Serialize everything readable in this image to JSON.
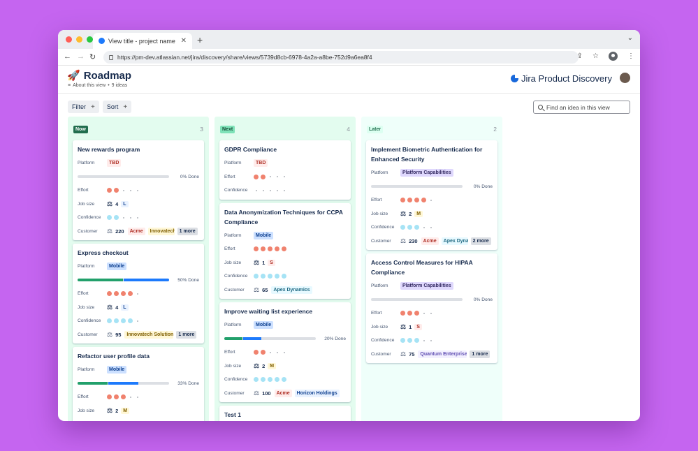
{
  "browser": {
    "tab_title": "View title - project name",
    "url": "https://pm-dev.atlassian.net/jira/discovery/share/views/5739d8cb-6978-4a2a-a8be-752d9a6ea8f4"
  },
  "header": {
    "emoji": "🚀",
    "title": "Roadmap",
    "about": "About this view",
    "ideas": "9 ideas",
    "brand": "Jira Product Discovery"
  },
  "toolbar": {
    "filter": "Filter",
    "sort": "Sort",
    "search_placeholder": "Find an idea in this view"
  },
  "labels": {
    "platform": "Platform",
    "effort": "Effort",
    "job_size": "Job size",
    "confidence": "Confidence",
    "customer": "Customer"
  },
  "columns": [
    {
      "name": "Now",
      "count": "3",
      "bg": "#e3fcef",
      "lozenge_bg": "#216e4e",
      "lozenge_fg": "#ffffff",
      "cards": [
        {
          "title": "New rewards program",
          "platform": "TBD",
          "platform_kind": "tbd",
          "progress": {
            "green": 0,
            "blue": 0,
            "label": "0% Done"
          },
          "effort": 2,
          "job_count": "4",
          "job_size": "L",
          "confidence": 2,
          "customer_count": "220",
          "customers": [
            {
              "name": "Acme",
              "kind": "red"
            },
            {
              "name": "Innovatech",
              "kind": "yellow"
            }
          ],
          "more": "1 more"
        },
        {
          "title": "Express checkout",
          "platform": "Mobile",
          "platform_kind": "mob",
          "progress": {
            "green": 0.5,
            "blue": 0.5,
            "label": "50% Done"
          },
          "effort": 4,
          "job_count": "4",
          "job_size": "L",
          "confidence": 4,
          "customer_count": "95",
          "customers": [
            {
              "name": "Innovatech Solutions",
              "kind": "yellow"
            }
          ],
          "more": "1 more"
        },
        {
          "title": "Refactor user profile data",
          "platform": "Mobile",
          "platform_kind": "mob",
          "progress": {
            "green": 0.33,
            "blue": 0.33,
            "label": "33% Done"
          },
          "effort": 3,
          "job_count": "2",
          "job_size": "M",
          "confidence": 3,
          "customer_count": "",
          "customers": [],
          "more": ""
        }
      ]
    },
    {
      "name": "Next",
      "count": "4",
      "bg": "#e3fcef",
      "lozenge_bg": "#7ee2b8",
      "lozenge_fg": "#164b35",
      "cards": [
        {
          "title": "GDPR Compliance",
          "platform": "TBD",
          "platform_kind": "tbd",
          "effort": 2,
          "confidence": 0
        },
        {
          "title": "Data Anonymization Techniques for CCPA Compliance",
          "platform": "Mobile",
          "platform_kind": "mob",
          "effort": 5,
          "job_count": "1",
          "job_size": "S",
          "confidence": 5,
          "customer_count": "65",
          "customers": [
            {
              "name": "Apex Dynamics",
              "kind": "teal"
            }
          ],
          "more": ""
        },
        {
          "title": "Improve waiting list experience",
          "platform": "Mobile",
          "platform_kind": "mob",
          "progress": {
            "green": 0.2,
            "blue": 0.2,
            "label": "20% Done"
          },
          "effort": 2,
          "job_count": "2",
          "job_size": "M",
          "confidence": 5,
          "customer_count": "100",
          "customers": [
            {
              "name": "Acme",
              "kind": "red"
            },
            {
              "name": "Horizon Holdings",
              "kind": "blue"
            }
          ],
          "more": ""
        },
        {
          "title": "Test 1",
          "effort": 0
        }
      ]
    },
    {
      "name": "Later",
      "count": "2",
      "bg": "#effffa",
      "lozenge_bg": "#dcfff1",
      "lozenge_fg": "#216e4e",
      "cards": [
        {
          "title": "Implement Biometric Authentication for Enhanced Security",
          "platform": "Platform Capabilities",
          "platform_kind": "plat",
          "progress": {
            "green": 0,
            "blue": 0,
            "label": "0% Done"
          },
          "effort": 4,
          "job_count": "2",
          "job_size": "M",
          "confidence": 3,
          "customer_count": "230",
          "customers": [
            {
              "name": "Acme",
              "kind": "red"
            },
            {
              "name": "Apex Dynamics",
              "kind": "teal"
            }
          ],
          "more": "2 more"
        },
        {
          "title": "Access Control Measures for HIPAA Compliance",
          "platform": "Platform Capabilities",
          "platform_kind": "plat",
          "progress": {
            "green": 0,
            "blue": 0,
            "label": "0% Done"
          },
          "effort": 3,
          "job_count": "1",
          "job_size": "S",
          "confidence": 3,
          "customer_count": "75",
          "customers": [
            {
              "name": "Quantum Enterprises",
              "kind": "purple"
            }
          ],
          "more": "1 more"
        }
      ]
    }
  ],
  "colors": {
    "green": "#22a06b",
    "blue": "#1d7afc",
    "tag_red_bg": "#ffeceb",
    "tag_red_fg": "#ae2e24",
    "tag_yellow_bg": "#fff7d6",
    "tag_yellow_fg": "#7f5f01",
    "tag_teal_bg": "#e7f9ff",
    "tag_teal_fg": "#206a83",
    "tag_blue_bg": "#e9f2ff",
    "tag_blue_fg": "#0c3e8f",
    "tag_purple_bg": "#f3f0ff",
    "tag_purple_fg": "#5e4db2"
  }
}
